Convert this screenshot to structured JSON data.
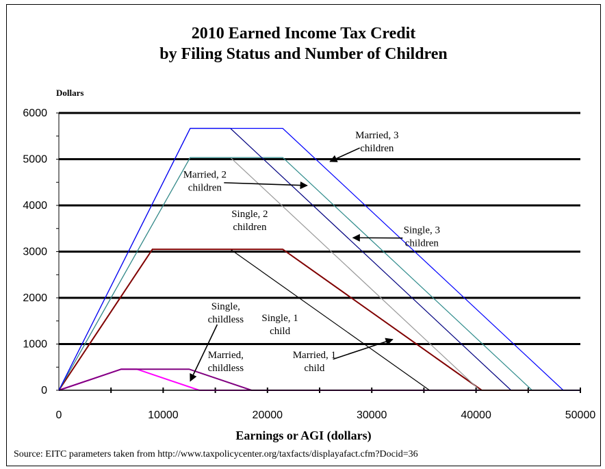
{
  "chart_data": {
    "type": "line",
    "title": "2010 Earned Income Tax Credit",
    "subtitle": "by Filing Status and Number of Children",
    "ylabel": "Dollars",
    "xlabel": "Earnings or AGI (dollars)",
    "source": "Source: EITC parameters taken from http://www.taxpolicycenter.org/taxfacts/displayafact.cfm?Docid=36",
    "xlim": [
      0,
      50000
    ],
    "ylim": [
      0,
      6000
    ],
    "x_ticks": [
      "0",
      "10000",
      "20000",
      "30000",
      "40000",
      "50000"
    ],
    "y_ticks": [
      "0",
      "1000",
      "2000",
      "3000",
      "4000",
      "5000",
      "6000"
    ],
    "grid": "horizontal",
    "series": [
      {
        "name": "Single, childless",
        "color": "#ff00ff",
        "points": [
          [
            0,
            0
          ],
          [
            5980,
            457
          ],
          [
            7480,
            457
          ],
          [
            13460,
            0
          ],
          [
            50000,
            0
          ]
        ]
      },
      {
        "name": "Married, childless",
        "color": "#800080",
        "points": [
          [
            0,
            0
          ],
          [
            5980,
            457
          ],
          [
            12490,
            457
          ],
          [
            18470,
            0
          ],
          [
            50000,
            0
          ]
        ]
      },
      {
        "name": "Single, 1 child",
        "color": "#000000",
        "points": [
          [
            0,
            0
          ],
          [
            8970,
            3050
          ],
          [
            16450,
            3050
          ],
          [
            35535,
            0
          ],
          [
            50000,
            0
          ]
        ]
      },
      {
        "name": "Married, 1 child",
        "color": "#800000",
        "points": [
          [
            0,
            0
          ],
          [
            8970,
            3050
          ],
          [
            21460,
            3050
          ],
          [
            40545,
            0
          ],
          [
            50000,
            0
          ]
        ]
      },
      {
        "name": "Single, 2 children",
        "color": "#999999",
        "points": [
          [
            0,
            0
          ],
          [
            12590,
            5036
          ],
          [
            16450,
            5036
          ],
          [
            40363,
            0
          ],
          [
            50000,
            0
          ]
        ]
      },
      {
        "name": "Married, 2 children",
        "color": "#2e8b8b",
        "points": [
          [
            0,
            0
          ],
          [
            12590,
            5036
          ],
          [
            21460,
            5036
          ],
          [
            45373,
            0
          ],
          [
            50000,
            0
          ]
        ]
      },
      {
        "name": "Single, 3 children",
        "color": "#000080",
        "points": [
          [
            0,
            0
          ],
          [
            12590,
            5666
          ],
          [
            16450,
            5666
          ],
          [
            43352,
            0
          ],
          [
            50000,
            0
          ]
        ]
      },
      {
        "name": "Married, 3 children",
        "color": "#0000ff",
        "points": [
          [
            0,
            0
          ],
          [
            12590,
            5666
          ],
          [
            21460,
            5666
          ],
          [
            48362,
            0
          ],
          [
            50000,
            0
          ]
        ]
      }
    ],
    "annotations": [
      {
        "lines": [
          "Married, 3",
          "children"
        ],
        "x": 30500,
        "y": 5450,
        "arrow_to": [
          26000,
          4950
        ]
      },
      {
        "lines": [
          "Married, 2",
          "children"
        ],
        "x": 14000,
        "y": 4600,
        "arrow_to": [
          23800,
          4430
        ]
      },
      {
        "lines": [
          "Single, 2",
          "children"
        ],
        "x": 18300,
        "y": 3750,
        "arrow": false
      },
      {
        "lines": [
          "Single, 3",
          "children"
        ],
        "x": 34800,
        "y": 3400,
        "arrow_to": [
          28200,
          3300
        ]
      },
      {
        "lines": [
          "Single,",
          "childless"
        ],
        "x": 16000,
        "y": 1750,
        "arrow_to": [
          12600,
          200
        ]
      },
      {
        "lines": [
          "Single, 1",
          "child"
        ],
        "x": 21200,
        "y": 1500,
        "arrow": false
      },
      {
        "lines": [
          "Married,",
          "childless"
        ],
        "x": 16000,
        "y": 700,
        "arrow": false
      },
      {
        "lines": [
          "Married, 1",
          "child"
        ],
        "x": 24500,
        "y": 700,
        "arrow_to": [
          32000,
          1100
        ]
      }
    ]
  }
}
